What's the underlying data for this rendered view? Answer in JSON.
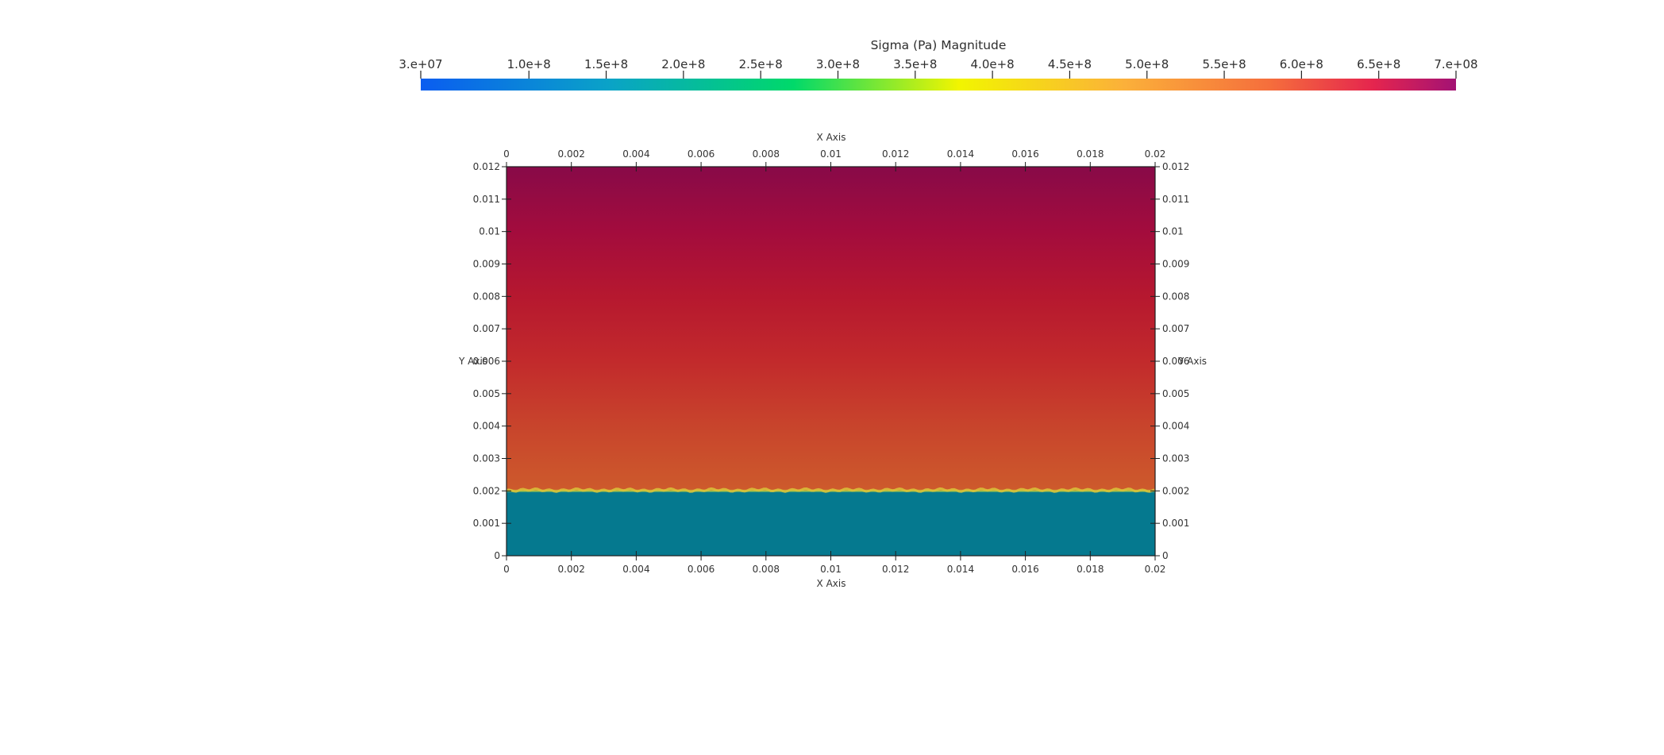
{
  "chart_data": {
    "type": "heatmap",
    "colorbar": {
      "title": "Sigma (Pa) Magnitude",
      "range": [
        30000000,
        700000000
      ],
      "tick_values": [
        30000000,
        100000000,
        150000000,
        200000000,
        250000000,
        300000000,
        350000000,
        400000000,
        450000000,
        500000000,
        550000000,
        600000000,
        650000000,
        700000000
      ],
      "tick_labels": [
        "3.e+07",
        "1.0e+8",
        "1.5e+8",
        "2.0e+8",
        "2.5e+8",
        "3.0e+8",
        "3.5e+8",
        "4.0e+8",
        "4.5e+8",
        "5.0e+8",
        "5.5e+8",
        "6.0e+8",
        "6.5e+8",
        "7.e+08"
      ],
      "colormap": [
        {
          "v": 0.0,
          "color": "#0a5df0"
        },
        {
          "v": 0.18,
          "color": "#0aa2c8"
        },
        {
          "v": 0.36,
          "color": "#00d96a"
        },
        {
          "v": 0.52,
          "color": "#f2f500"
        },
        {
          "v": 0.68,
          "color": "#fbb03a"
        },
        {
          "v": 0.82,
          "color": "#f56e3c"
        },
        {
          "v": 0.92,
          "color": "#e5254e"
        },
        {
          "v": 1.0,
          "color": "#a31274"
        }
      ]
    },
    "xlabel": "X Axis",
    "ylabel": "Y Axis",
    "xlim": [
      0,
      0.02
    ],
    "ylim": [
      0,
      0.012
    ],
    "x_ticks": [
      0,
      0.002,
      0.004,
      0.006,
      0.008,
      0.01,
      0.012,
      0.014,
      0.016,
      0.018,
      0.02
    ],
    "x_tick_labels": [
      "0",
      "0.002",
      "0.004",
      "0.006",
      "0.008",
      "0.01",
      "0.012",
      "0.014",
      "0.016",
      "0.018",
      "0.02"
    ],
    "y_ticks": [
      0,
      0.001,
      0.002,
      0.003,
      0.004,
      0.005,
      0.006,
      0.007,
      0.008,
      0.009,
      0.01,
      0.011,
      0.012
    ],
    "y_tick_labels": [
      "0",
      "0.001",
      "0.002",
      "0.003",
      "0.004",
      "0.005",
      "0.006",
      "0.007",
      "0.008",
      "0.009",
      "0.01",
      "0.011",
      "0.012"
    ],
    "field_profile": [
      {
        "y": 0.0,
        "color": "#05798f"
      },
      {
        "y": 0.00195,
        "color": "#05798f"
      },
      {
        "y": 0.002,
        "color": "#bcd040"
      },
      {
        "y": 0.00205,
        "color": "#cd5a2c"
      },
      {
        "y": 0.004,
        "color": "#c8442c"
      },
      {
        "y": 0.006,
        "color": "#c22a2c"
      },
      {
        "y": 0.008,
        "color": "#b6182f"
      },
      {
        "y": 0.01,
        "color": "#a30c3d"
      },
      {
        "y": 0.012,
        "color": "#880a48"
      }
    ]
  }
}
